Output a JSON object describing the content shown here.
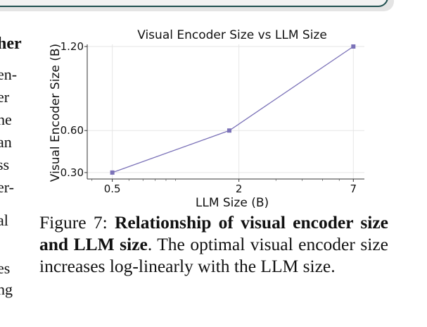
{
  "left_column_fragments": [
    "her",
    "en-",
    "er",
    "he",
    "an",
    "ss",
    "er-",
    "al",
    "es",
    "ng"
  ],
  "chart_data": {
    "type": "line",
    "title": "Visual Encoder Size vs LLM Size",
    "xlabel": "LLM Size (B)",
    "ylabel": "Visual Encoder Size (B)",
    "x_scale": "log",
    "y_scale": "linear",
    "x": [
      0.5,
      1.8,
      7
    ],
    "values": [
      0.3,
      0.6,
      1.2
    ],
    "xticks": [
      0.5,
      2,
      7
    ],
    "xtick_labels": [
      "0.5",
      "2",
      "7"
    ],
    "yticks": [
      0.3,
      0.6,
      1.2
    ],
    "ytick_labels": [
      "0.30",
      "0.60",
      "1.20"
    ],
    "xlim": [
      0.38,
      7.9
    ],
    "ylim": [
      0.254,
      1.215
    ],
    "grid": true,
    "marker": "square",
    "color": "#7b72b8"
  },
  "caption": {
    "label": "Figure 7:",
    "bold": "Relationship of visual encoder size and LLM size",
    "rest": ". The optimal visual encoder size increases log-linearly with the LLM size."
  }
}
